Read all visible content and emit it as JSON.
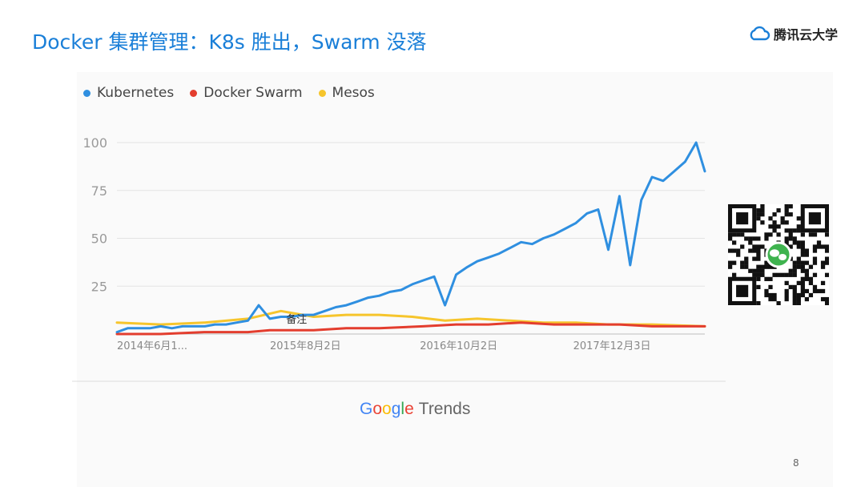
{
  "slide": {
    "title": "Docker 集群管理：K8s 胜出，Swarm 没落",
    "brand": "腾讯云大学",
    "page_number": "8",
    "google_trends_logo": "Google",
    "google_trends_label": "Trends",
    "qr_icon": "wechat-qr-code"
  },
  "colors": {
    "title": "#1a7fd8",
    "kubernetes": "#2f8fe0",
    "docker_swarm": "#e33d2e",
    "mesos": "#f6c52c"
  },
  "chart_data": {
    "type": "line",
    "title": "",
    "xlabel": "",
    "ylabel": "",
    "ylim": [
      0,
      100
    ],
    "yticks": [
      "100",
      "75",
      "50",
      "25"
    ],
    "x_start": "2014-06-01",
    "x_end": "2018-11-25",
    "xticks": [
      {
        "date": "2014-06-01",
        "label": "2014年6月1..."
      },
      {
        "date": "2015-08-02",
        "label": "2015年8月2日"
      },
      {
        "date": "2016-10-02",
        "label": "2016年10月2日"
      },
      {
        "date": "2017-12-03",
        "label": "2017年12月3日"
      }
    ],
    "annotation": {
      "date": "2015-10-01",
      "value": 5,
      "text": "备注"
    },
    "legend": "top-left",
    "grid": true,
    "series": [
      {
        "name": "Kubernetes",
        "color": "#2f8fe0",
        "points": [
          [
            "2014-06-01",
            1
          ],
          [
            "2014-07-01",
            3
          ],
          [
            "2014-08-01",
            3
          ],
          [
            "2014-09-01",
            3
          ],
          [
            "2014-10-01",
            4
          ],
          [
            "2014-11-01",
            3
          ],
          [
            "2014-12-01",
            4
          ],
          [
            "2015-01-01",
            4
          ],
          [
            "2015-02-01",
            4
          ],
          [
            "2015-03-01",
            5
          ],
          [
            "2015-04-01",
            5
          ],
          [
            "2015-05-01",
            6
          ],
          [
            "2015-06-01",
            7
          ],
          [
            "2015-07-01",
            15
          ],
          [
            "2015-08-01",
            8
          ],
          [
            "2015-09-01",
            9
          ],
          [
            "2015-10-01",
            9
          ],
          [
            "2015-11-01",
            10
          ],
          [
            "2015-12-01",
            10
          ],
          [
            "2016-01-01",
            12
          ],
          [
            "2016-02-01",
            14
          ],
          [
            "2016-03-01",
            15
          ],
          [
            "2016-04-01",
            17
          ],
          [
            "2016-05-01",
            19
          ],
          [
            "2016-06-01",
            20
          ],
          [
            "2016-07-01",
            22
          ],
          [
            "2016-08-01",
            23
          ],
          [
            "2016-09-01",
            26
          ],
          [
            "2016-10-01",
            28
          ],
          [
            "2016-11-01",
            30
          ],
          [
            "2016-12-01",
            15
          ],
          [
            "2017-01-01",
            31
          ],
          [
            "2017-02-01",
            35
          ],
          [
            "2017-03-01",
            38
          ],
          [
            "2017-04-01",
            40
          ],
          [
            "2017-05-01",
            42
          ],
          [
            "2017-06-01",
            45
          ],
          [
            "2017-07-01",
            48
          ],
          [
            "2017-08-01",
            47
          ],
          [
            "2017-09-01",
            50
          ],
          [
            "2017-10-01",
            52
          ],
          [
            "2017-11-01",
            55
          ],
          [
            "2017-12-01",
            58
          ],
          [
            "2018-01-01",
            63
          ],
          [
            "2018-02-01",
            65
          ],
          [
            "2018-03-01",
            44
          ],
          [
            "2018-04-01",
            72
          ],
          [
            "2018-05-01",
            36
          ],
          [
            "2018-06-01",
            70
          ],
          [
            "2018-07-01",
            82
          ],
          [
            "2018-08-01",
            80
          ],
          [
            "2018-09-01",
            85
          ],
          [
            "2018-10-01",
            90
          ],
          [
            "2018-11-01",
            100
          ],
          [
            "2018-11-25",
            85
          ]
        ]
      },
      {
        "name": "Docker Swarm",
        "color": "#e33d2e",
        "points": [
          [
            "2014-06-01",
            0
          ],
          [
            "2014-10-01",
            0
          ],
          [
            "2015-02-01",
            1
          ],
          [
            "2015-06-01",
            1
          ],
          [
            "2015-08-01",
            2
          ],
          [
            "2015-12-01",
            2
          ],
          [
            "2016-03-01",
            3
          ],
          [
            "2016-06-01",
            3
          ],
          [
            "2016-10-01",
            4
          ],
          [
            "2017-01-01",
            5
          ],
          [
            "2017-04-01",
            5
          ],
          [
            "2017-07-01",
            6
          ],
          [
            "2017-10-01",
            5
          ],
          [
            "2018-01-01",
            5
          ],
          [
            "2018-04-01",
            5
          ],
          [
            "2018-07-01",
            4
          ],
          [
            "2018-11-25",
            4
          ]
        ]
      },
      {
        "name": "Mesos",
        "color": "#f6c52c",
        "points": [
          [
            "2014-06-01",
            6
          ],
          [
            "2014-10-01",
            5
          ],
          [
            "2015-02-01",
            6
          ],
          [
            "2015-06-01",
            8
          ],
          [
            "2015-09-01",
            12
          ],
          [
            "2015-12-01",
            9
          ],
          [
            "2016-03-01",
            10
          ],
          [
            "2016-06-01",
            10
          ],
          [
            "2016-09-01",
            9
          ],
          [
            "2016-12-01",
            7
          ],
          [
            "2017-03-01",
            8
          ],
          [
            "2017-06-01",
            7
          ],
          [
            "2017-09-01",
            6
          ],
          [
            "2017-12-01",
            6
          ],
          [
            "2018-03-01",
            5
          ],
          [
            "2018-07-01",
            5
          ],
          [
            "2018-11-25",
            4
          ]
        ]
      }
    ]
  }
}
